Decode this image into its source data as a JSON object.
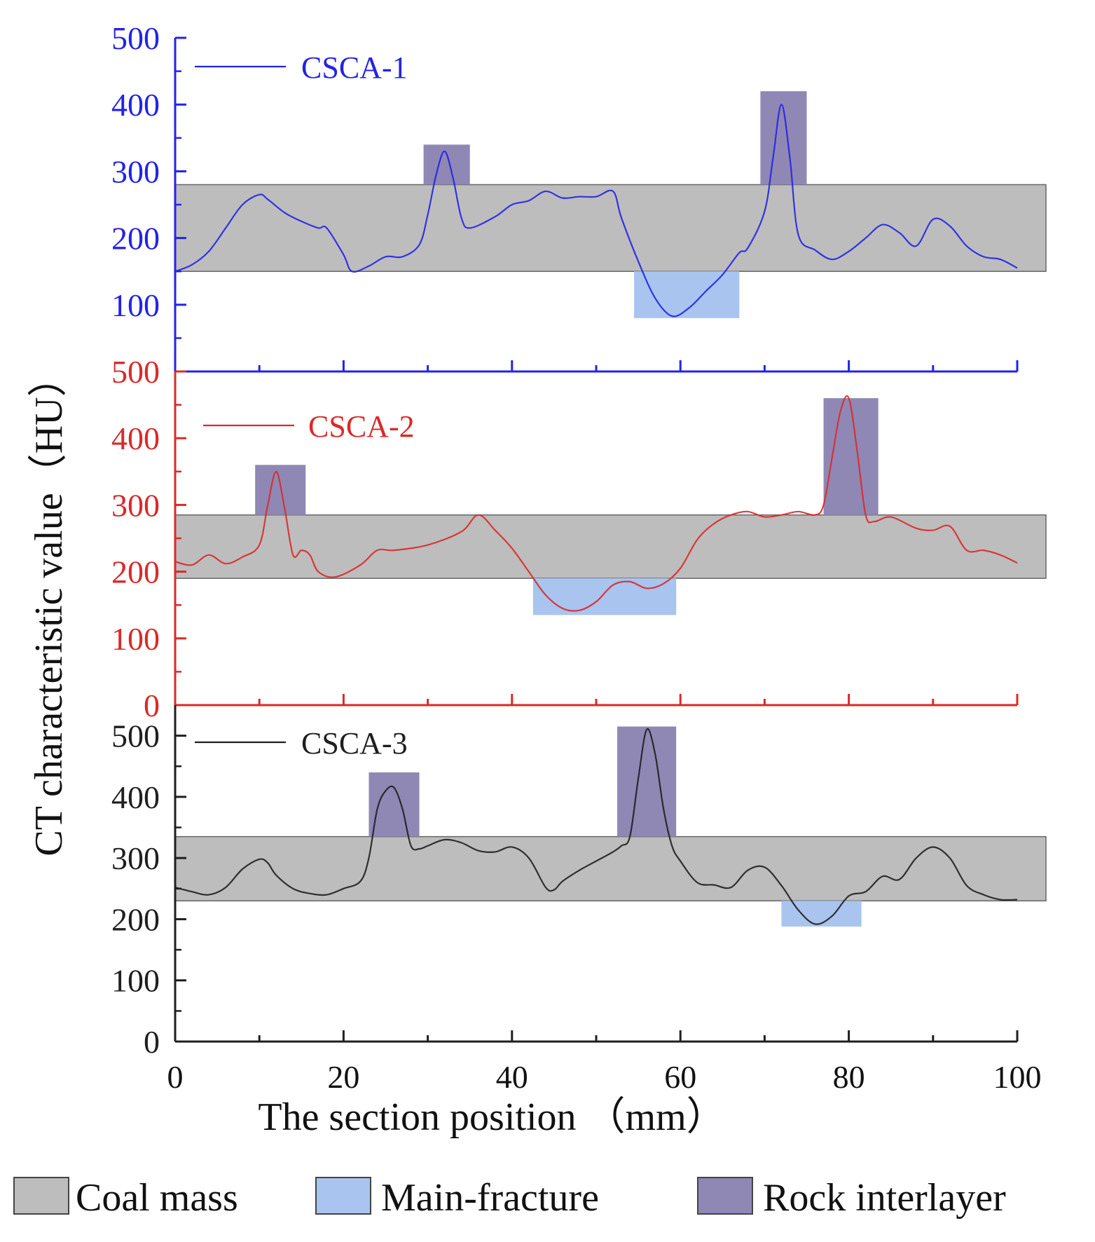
{
  "chart_data": {
    "type": "line",
    "layout": "three vertically stacked panels sharing the x axis",
    "ylabel": "CT characteristic value（HU）",
    "xlabel": "The section position （mm）",
    "xlim": [
      0,
      100
    ],
    "x_ticks": [
      "0",
      "20",
      "40",
      "60",
      "80",
      "100"
    ],
    "band_legend": [
      {
        "name": "Coal mass",
        "color": "#bdbdbd"
      },
      {
        "name": "Main-fracture",
        "color": "#a9c4ee"
      },
      {
        "name": "Rock interlayer",
        "color": "#8f88b4"
      }
    ],
    "panels": [
      {
        "name": "CSCA-1",
        "color": "#2323e6",
        "ylim": [
          0,
          500
        ],
        "y_ticks": [
          "500",
          "400",
          "300",
          "200",
          "100"
        ],
        "series": {
          "x": [
            0,
            2,
            4,
            6,
            8,
            10,
            11,
            13,
            15,
            17,
            18,
            20,
            21,
            23,
            25,
            27,
            29,
            30,
            31,
            32,
            33,
            34,
            35,
            38,
            40,
            42,
            44,
            46,
            48,
            50,
            52,
            53,
            55,
            57,
            59,
            61,
            63,
            65,
            67,
            68,
            70,
            71,
            72,
            73,
            74,
            76,
            78,
            80,
            82,
            84,
            86,
            88,
            90,
            92,
            94,
            96,
            98,
            100
          ],
          "y": [
            150,
            160,
            180,
            215,
            250,
            265,
            258,
            238,
            225,
            215,
            215,
            175,
            150,
            158,
            172,
            172,
            190,
            235,
            295,
            330,
            290,
            230,
            215,
            232,
            250,
            256,
            270,
            260,
            262,
            262,
            270,
            230,
            165,
            110,
            83,
            95,
            120,
            145,
            178,
            185,
            240,
            320,
            400,
            320,
            205,
            182,
            168,
            180,
            200,
            220,
            208,
            188,
            228,
            218,
            188,
            172,
            168,
            155
          ]
        },
        "bands": [
          {
            "type": "Coal mass",
            "x": [
              0,
              103
            ],
            "y": [
              150,
              280
            ]
          },
          {
            "type": "Main-fracture",
            "x": [
              54.5,
              67
            ],
            "y": [
              80,
              150
            ]
          },
          {
            "type": "Rock interlayer",
            "x": [
              29.5,
              35
            ],
            "y": [
              280,
              340
            ]
          },
          {
            "type": "Rock interlayer",
            "x": [
              69.5,
              75
            ],
            "y": [
              280,
              420
            ]
          }
        ]
      },
      {
        "name": "CSCA-2",
        "color": "#d92a2a",
        "ylim": [
          0,
          500
        ],
        "y_ticks": [
          "500",
          "400",
          "300",
          "200",
          "100",
          "0"
        ],
        "series": {
          "x": [
            0,
            2,
            4,
            6,
            8,
            10,
            11,
            12,
            13,
            14,
            15,
            16,
            17,
            19,
            22,
            24,
            26,
            30,
            34,
            36,
            38,
            40,
            42,
            44,
            46,
            48,
            50,
            52,
            54,
            56,
            58,
            60,
            62,
            64,
            66,
            68,
            70,
            72,
            74,
            76,
            77,
            78,
            79,
            80,
            81,
            82,
            83,
            85,
            88,
            90,
            92,
            94,
            96,
            98,
            100
          ],
          "y": [
            215,
            210,
            225,
            212,
            222,
            240,
            300,
            350,
            295,
            225,
            232,
            225,
            200,
            192,
            210,
            232,
            232,
            240,
            260,
            285,
            262,
            235,
            200,
            165,
            145,
            142,
            155,
            180,
            185,
            175,
            182,
            205,
            248,
            272,
            285,
            290,
            282,
            285,
            290,
            285,
            300,
            370,
            440,
            460,
            380,
            285,
            275,
            282,
            265,
            262,
            268,
            232,
            232,
            225,
            213
          ]
        },
        "bands": [
          {
            "type": "Coal mass",
            "x": [
              0,
              103
            ],
            "y": [
              190,
              285
            ]
          },
          {
            "type": "Main-fracture",
            "x": [
              42.5,
              59.5
            ],
            "y": [
              135,
              190
            ]
          },
          {
            "type": "Rock interlayer",
            "x": [
              9.5,
              15.5
            ],
            "y": [
              285,
              360
            ]
          },
          {
            "type": "Rock interlayer",
            "x": [
              77,
              83.5
            ],
            "y": [
              285,
              460
            ]
          }
        ]
      },
      {
        "name": "CSCA-3",
        "color": "#1f1f1f",
        "ylim": [
          0,
          550
        ],
        "y_ticks": [
          "500",
          "400",
          "300",
          "200",
          "100",
          "0"
        ],
        "series": {
          "x": [
            0,
            2,
            4,
            6,
            8,
            10,
            11,
            12,
            14,
            16,
            18,
            20,
            22,
            23,
            24,
            25,
            26,
            27,
            28,
            29,
            30,
            32,
            34,
            36,
            38,
            40,
            42,
            44,
            45,
            46,
            48,
            50,
            52,
            53,
            54,
            55,
            56,
            57,
            58,
            59,
            60,
            62,
            64,
            66,
            68,
            70,
            72,
            74,
            76,
            78,
            80,
            82,
            84,
            86,
            88,
            90,
            92,
            94,
            96,
            98,
            100
          ],
          "y": [
            252,
            245,
            240,
            252,
            282,
            298,
            292,
            272,
            250,
            242,
            240,
            250,
            262,
            300,
            380,
            410,
            415,
            380,
            320,
            315,
            320,
            330,
            325,
            312,
            310,
            318,
            300,
            252,
            248,
            262,
            280,
            295,
            310,
            320,
            335,
            430,
            510,
            470,
            380,
            320,
            295,
            260,
            256,
            252,
            280,
            285,
            255,
            215,
            192,
            205,
            238,
            245,
            270,
            265,
            300,
            318,
            300,
            255,
            240,
            232,
            232
          ]
        },
        "bands": [
          {
            "type": "Coal mass",
            "x": [
              0,
              103
            ],
            "y": [
              230,
              335
            ]
          },
          {
            "type": "Main-fracture",
            "x": [
              72,
              81.5
            ],
            "y": [
              188,
              230
            ]
          },
          {
            "type": "Rock interlayer",
            "x": [
              23,
              29
            ],
            "y": [
              335,
              440
            ]
          },
          {
            "type": "Rock interlayer",
            "x": [
              52.5,
              59.5
            ],
            "y": [
              335,
              515
            ]
          }
        ]
      }
    ]
  }
}
